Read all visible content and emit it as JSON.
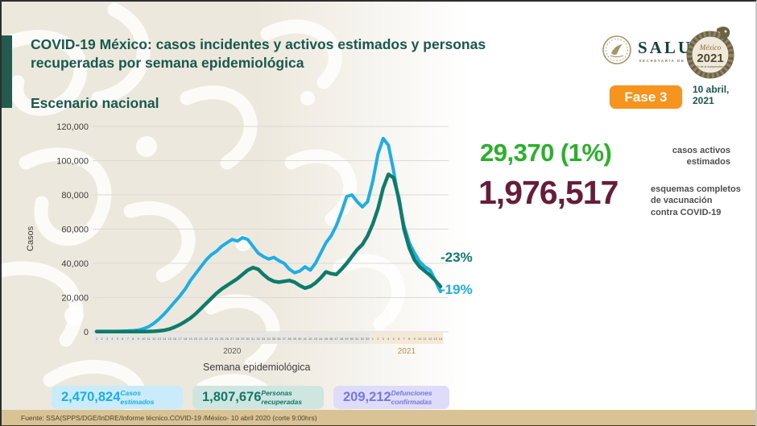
{
  "slide": {
    "title": "COVID-19 México: casos incidentes y activos estimados y personas recuperadas por semana epidemiológica",
    "subtitle": "Escenario nacional",
    "phase_badge": "Fase 3",
    "date": "10 abril,\n2021"
  },
  "logos": {
    "salud": {
      "name": "SALUD",
      "tagline": "SECRETARÍA DE SALUD"
    },
    "mexico2021": {
      "country": "México",
      "year": "2021",
      "subtitle": "Año de la Independencia"
    }
  },
  "stats": {
    "active_cases": {
      "value": "29,370 (1%)",
      "label": "casos activos estimados",
      "color": "#27b327"
    },
    "vaccination": {
      "value": "1,976,517",
      "label": "esquemas completos de vacunación contra COVID-19",
      "color": "#691c3a"
    }
  },
  "chart_data": {
    "type": "line",
    "title": "",
    "ylabel": "Casos",
    "xlabel": "Semana epidemiológica",
    "ylim": [
      0,
      120000
    ],
    "grid": true,
    "legend_position": "none",
    "yticks": [
      0,
      20000,
      40000,
      60000,
      80000,
      100000,
      120000
    ],
    "ytick_labels": [
      "0",
      "20,000",
      "40,000",
      "60,000",
      "80,000",
      "100,000",
      "120,000"
    ],
    "x_groups": [
      {
        "year": "2020",
        "week_start": 1,
        "week_end": 53,
        "band_color": "#e8e6e3",
        "label_color": "#595959"
      },
      {
        "year": "2021",
        "week_start": 1,
        "week_end": 14,
        "band_color": "#f3e9d6",
        "label_color": "#bd8f4e"
      }
    ],
    "series": [
      {
        "name": "Casos estimados",
        "color": "#1caee5",
        "stroke_width": 4,
        "end_label": "-19%",
        "values": [
          300,
          300,
          300,
          300,
          300,
          400,
          500,
          700,
          1000,
          1800,
          3000,
          5000,
          7500,
          10500,
          14000,
          17500,
          21000,
          25000,
          30000,
          34000,
          38000,
          42000,
          45000,
          47000,
          50000,
          52000,
          54000,
          53000,
          55000,
          54000,
          50000,
          46000,
          44000,
          42500,
          43500,
          41500,
          40000,
          36500,
          34500,
          35500,
          38000,
          36000,
          40000,
          46000,
          52000,
          56000,
          62000,
          70000,
          79000,
          80000,
          76000,
          73000,
          76000,
          88000,
          104000,
          113000,
          109000,
          94000,
          76000,
          62000,
          52000,
          46000,
          41000,
          38000,
          36000,
          30000,
          23500
        ]
      },
      {
        "name": "Personas recuperadas",
        "color": "#0e7c6b",
        "stroke_width": 4.5,
        "end_label": "-23%",
        "values": [
          150,
          150,
          150,
          150,
          150,
          150,
          150,
          150,
          150,
          150,
          200,
          300,
          500,
          900,
          1600,
          2800,
          4200,
          6000,
          8000,
          10500,
          13500,
          16500,
          19500,
          22500,
          25000,
          27000,
          29000,
          31000,
          33500,
          36000,
          37500,
          36500,
          33500,
          31000,
          29500,
          29000,
          29500,
          30000,
          29000,
          27000,
          25500,
          26500,
          28500,
          31500,
          35000,
          34000,
          33500,
          36500,
          40000,
          44000,
          48000,
          51000,
          56000,
          63000,
          72000,
          84000,
          92000,
          90000,
          78000,
          60000,
          49000,
          42000,
          38000,
          35500,
          33000,
          30000,
          26500
        ]
      }
    ]
  },
  "summary_boxes": [
    {
      "value": "2,470,824",
      "label": "Casos estimados",
      "bg": "#c9ebfa",
      "color": "#1caee5"
    },
    {
      "value": "1,807,676",
      "label": "Personas recuperadas",
      "bg": "#cfe5e0",
      "color": "#11796a"
    },
    {
      "value": "209,212",
      "label": "Defunciones confirmadas",
      "bg": "#dedcf9",
      "color": "#7278ee"
    }
  ],
  "footer": {
    "source": "Fuente: SSA(SPPS/DGE/InDRE/Informe técnico.COVID-19 /México- 10 abril 2020 (corte 9:00hrs)"
  }
}
